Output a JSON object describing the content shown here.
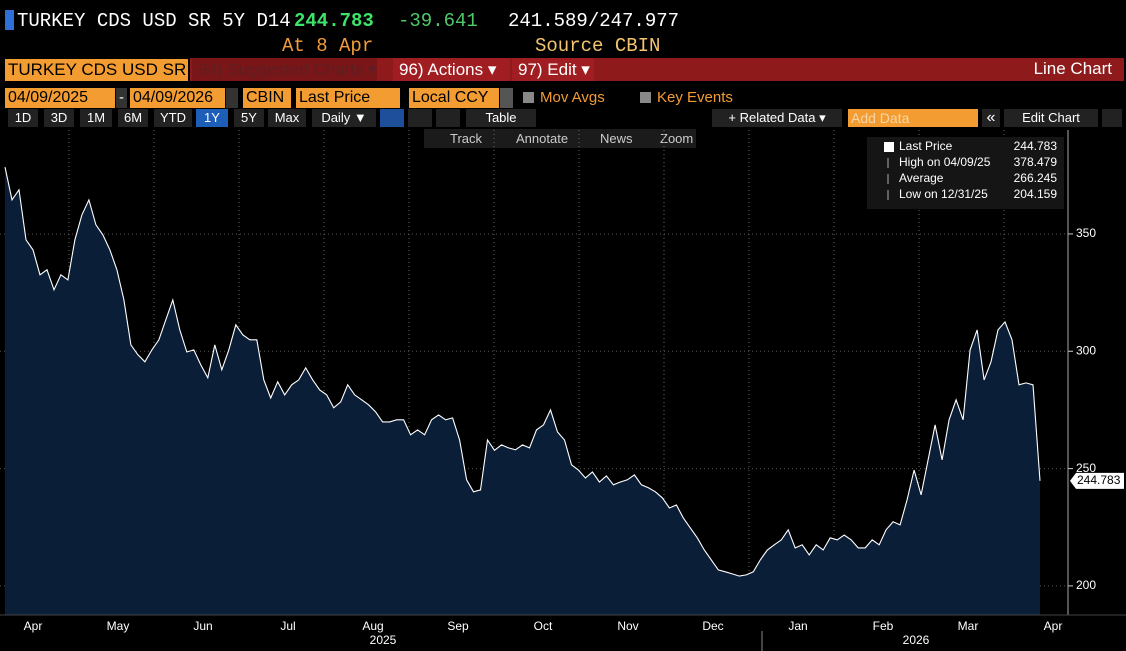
{
  "header": {
    "ticker": "TURKEY CDS USD SR 5Y D14",
    "last": "244.783",
    "change": "-39.641",
    "bid_ask": "241.589/247.977",
    "as_of": "At 8 Apr",
    "source": "Source CBIN"
  },
  "menu": {
    "security": "TURKEY CDS USD SR",
    "suggested": "94) Suggested Charts ▾",
    "actions": "96) Actions ▾",
    "edit": "97) Edit ▾",
    "chart_type": "Line Chart"
  },
  "range": {
    "start": "04/09/2025",
    "dash": "-",
    "end": "04/09/2026",
    "source": "CBIN",
    "field": "Last Price",
    "currency": "Local CCY",
    "mov_avgs": "Mov Avgs",
    "key_events": "Key Events"
  },
  "periods": [
    "1D",
    "3D",
    "1M",
    "6M",
    "YTD",
    "1Y",
    "5Y",
    "Max"
  ],
  "controls": {
    "frequency": "Daily ▼",
    "table": "Table",
    "related": "+ Related Data ▾",
    "add_data": "Add Data",
    "collapse": "«",
    "edit_chart": "Edit Chart"
  },
  "tools": [
    "Track",
    "Annotate",
    "News",
    "Zoom"
  ],
  "chart_data": {
    "type": "line",
    "color": "#ffffff",
    "fill": "#0b1e38",
    "values": [
      378.479,
      364.5,
      368.8,
      347.5,
      343.2,
      332.6,
      334.7,
      326.2,
      332.6,
      330.4,
      347.5,
      358.1,
      364.5,
      353.9,
      349.6,
      343.2,
      334.7,
      321.9,
      302.7,
      298.5,
      295.5,
      300.6,
      304.9,
      313.4,
      321.9,
      309.1,
      299.7,
      300.6,
      294.2,
      288.7,
      302.7,
      292.1,
      300.6,
      311.3,
      307.0,
      304.9,
      304.9,
      287.8,
      280.1,
      287.0,
      281.4,
      285.7,
      287.8,
      292.9,
      287.8,
      283.5,
      281.4,
      275.9,
      278.4,
      285.7,
      281.4,
      279.3,
      277.2,
      274.2,
      269.9,
      269.9,
      270.8,
      270.8,
      264.4,
      266.5,
      264.4,
      270.8,
      272.9,
      270.8,
      271.6,
      262.2,
      245.2,
      240.1,
      240.9,
      262.2,
      257.8,
      260.1,
      258.8,
      258.0,
      260.1,
      258.8,
      266.5,
      268.6,
      275.0,
      265.6,
      262.2,
      251.6,
      249.4,
      246.0,
      248.6,
      244.3,
      246.9,
      243.1,
      244.3,
      245.2,
      247.3,
      243.1,
      241.8,
      240.1,
      237.5,
      233.2,
      234.5,
      229.0,
      224.7,
      220.5,
      215.3,
      211.1,
      206.8,
      206.0,
      205.1,
      204.159,
      204.7,
      206.0,
      211.1,
      215.3,
      217.5,
      219.6,
      223.9,
      216.2,
      217.5,
      213.2,
      217.5,
      215.3,
      220.5,
      219.6,
      221.7,
      219.6,
      216.2,
      216.2,
      219.6,
      217.5,
      223.9,
      227.3,
      226.0,
      236.7,
      249.4,
      238.8,
      253.7,
      268.6,
      253.7,
      270.8,
      279.3,
      270.8,
      300.6,
      309.1,
      287.8,
      295.5,
      309.1,
      312.5,
      304.9,
      285.7,
      286.5,
      285.7,
      244.783
    ],
    "ylim": [
      187.6,
      394.3
    ],
    "yticks": [
      200,
      250,
      300,
      350
    ],
    "grid": true,
    "x_labels": [
      "Apr",
      "May",
      "Jun",
      "Jul",
      "Aug",
      "Sep",
      "Oct",
      "Nov",
      "Dec",
      "Jan",
      "Feb",
      "Mar",
      "Apr"
    ],
    "x_year_labels": [
      "2025",
      "2026"
    ],
    "stats": [
      {
        "label": "Last Price",
        "value": 244.783
      },
      {
        "label": "High on 04/09/25",
        "value": 378.479
      },
      {
        "label": "Average",
        "value": 266.245
      },
      {
        "label": "Low on 12/31/25",
        "value": 204.159
      }
    ]
  }
}
